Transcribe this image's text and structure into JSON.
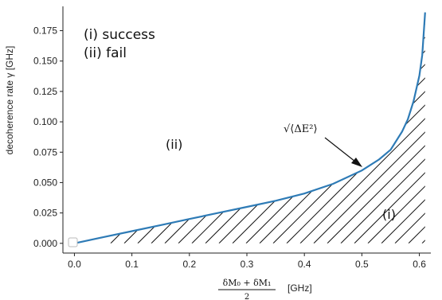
{
  "chart_data": {
    "type": "line",
    "xlabel": {
      "numerator": "δM₀ + δM₁",
      "denominator": "2",
      "unit": "[GHz]"
    },
    "ylabel": "decoherence rate γ [GHz]",
    "xlim": [
      -0.02,
      0.62
    ],
    "ylim": [
      -0.008,
      0.195
    ],
    "xticks": [
      "0.0",
      "0.1",
      "0.2",
      "0.3",
      "0.4",
      "0.5",
      "0.6"
    ],
    "yticks": [
      "0.000",
      "0.025",
      "0.050",
      "0.075",
      "0.100",
      "0.125",
      "0.150",
      "0.175"
    ],
    "grid": false,
    "series": [
      {
        "color": "#2e7bb6",
        "x": [
          0.0,
          0.05,
          0.1,
          0.15,
          0.2,
          0.25,
          0.3,
          0.35,
          0.4,
          0.45,
          0.5,
          0.53,
          0.55,
          0.57,
          0.58,
          0.59,
          0.6,
          0.605,
          0.61
        ],
        "y": [
          0.0,
          0.005,
          0.01,
          0.015,
          0.02,
          0.025,
          0.03,
          0.035,
          0.041,
          0.049,
          0.06,
          0.069,
          0.077,
          0.092,
          0.102,
          0.117,
          0.138,
          0.155,
          0.19
        ]
      }
    ],
    "legend": {
      "items": [
        "(i)  success",
        "(ii)  fail"
      ],
      "placement": "top-left"
    },
    "region_labels": {
      "fail": "(ii)",
      "success": "(i)"
    },
    "annotation": {
      "text": "√⟨ΔE²⟩",
      "points_to": [
        0.505,
        0.061
      ]
    }
  }
}
